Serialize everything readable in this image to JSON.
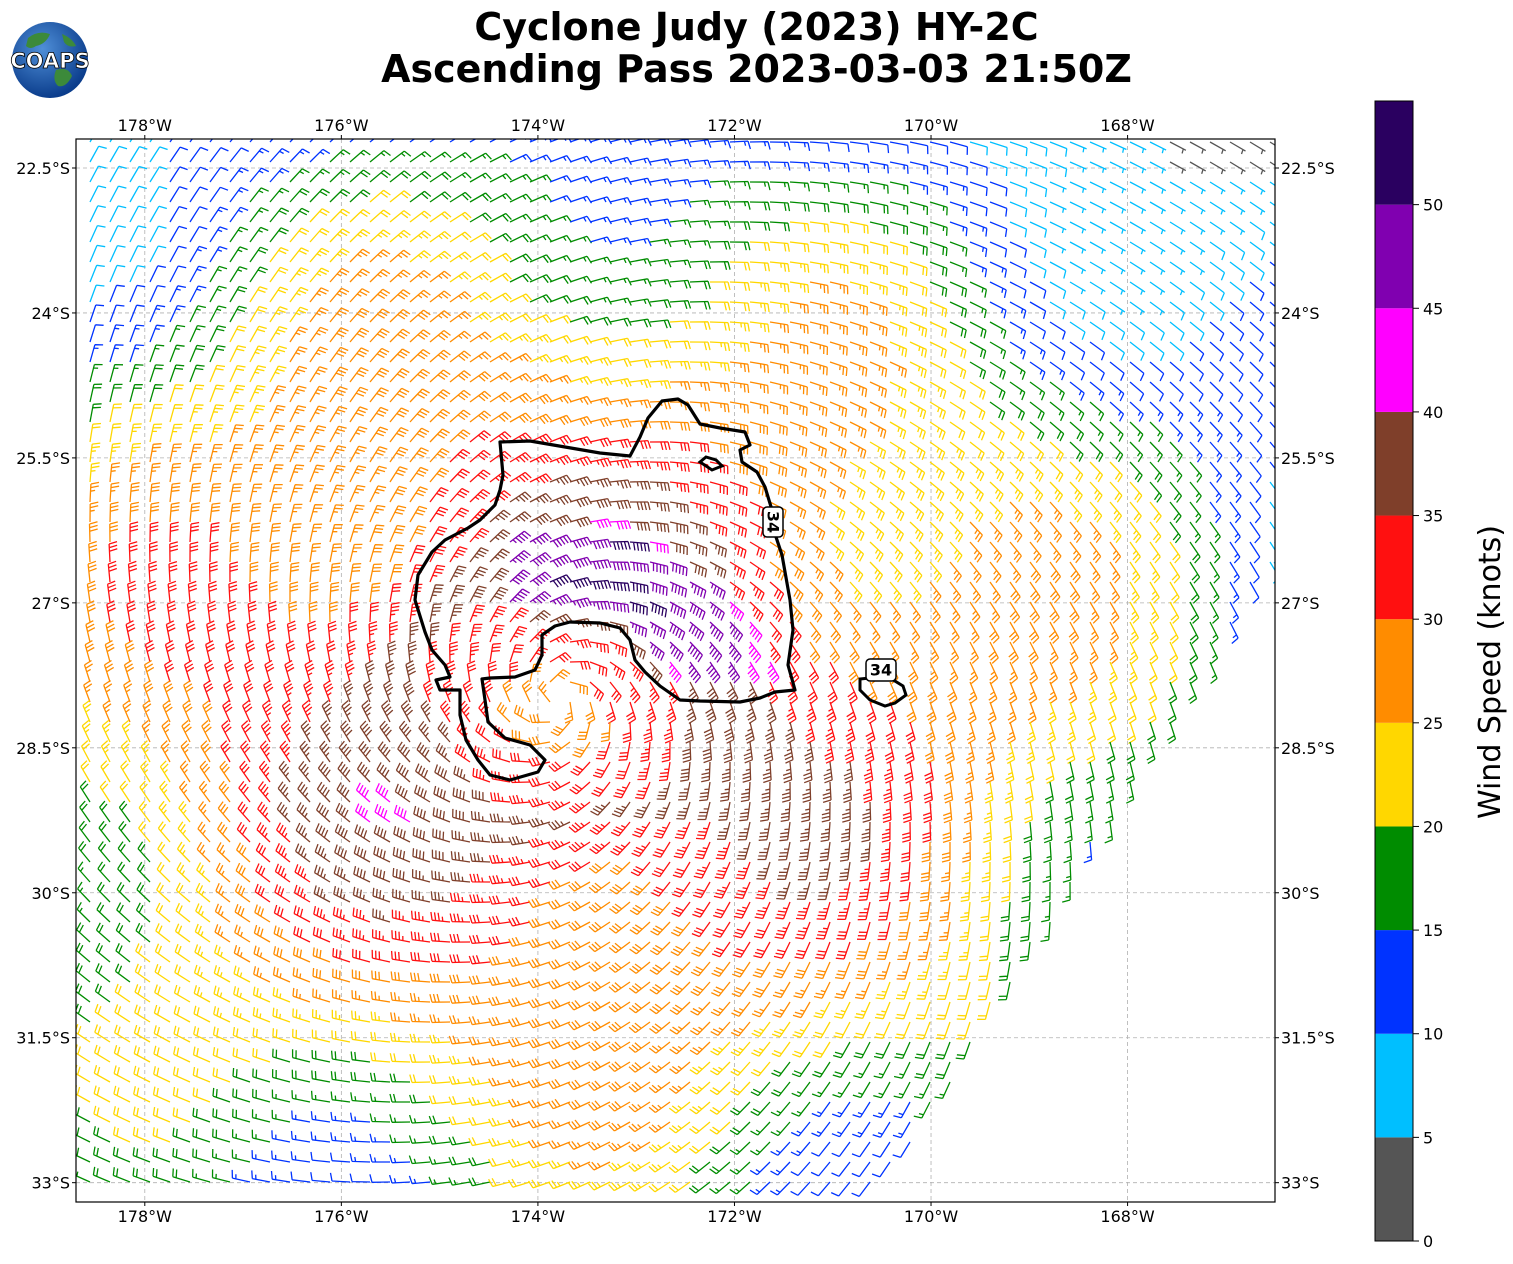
{
  "title": {
    "line1": "Cyclone Judy (2023) HY-2C",
    "line2": "Ascending Pass 2023-03-03 21:50Z"
  },
  "logo": {
    "text": "COAPS",
    "icon": "globe-logo-icon"
  },
  "map": {
    "lon_range": [
      -178.7,
      -166.5
    ],
    "lat_range": [
      -33.2,
      -22.2
    ],
    "lon_ticks": [
      "178°W",
      "176°W",
      "174°W",
      "172°W",
      "170°W",
      "168°W"
    ],
    "lon_tick_values": [
      -178,
      -176,
      -174,
      -172,
      -170,
      -168
    ],
    "lat_ticks": [
      "22.5°S",
      "24°S",
      "25.5°S",
      "27°S",
      "28.5°S",
      "30°S",
      "31.5°S",
      "33°S"
    ],
    "lat_tick_values": [
      -22.5,
      -24,
      -25.5,
      -27,
      -28.5,
      -30,
      -31.5,
      -33
    ],
    "gridlines": true,
    "cyclone_center": {
      "lon": -173.8,
      "lat": -28.0
    },
    "contour_level_label": "34",
    "contour_labels": [
      {
        "text": "34",
        "lon": -171.6,
        "lat": -26.2,
        "rotate": 90
      },
      {
        "text": "34",
        "lon": -170.5,
        "lat": -27.7,
        "rotate": 0
      }
    ]
  },
  "colorbar": {
    "label": "Wind Speed (knots)",
    "ticks": [
      "0",
      "5",
      "10",
      "15",
      "20",
      "25",
      "30",
      "35",
      "40",
      "45",
      "50"
    ],
    "bounds": [
      0,
      5,
      10,
      15,
      20,
      25,
      30,
      35,
      40,
      45,
      50,
      55
    ],
    "colors": [
      "#555555",
      "#00bfff",
      "#0033ff",
      "#008c00",
      "#ffd700",
      "#ff8c00",
      "#ff1010",
      "#7f3f2a",
      "#ff00ff",
      "#8000b0",
      "#2a0060"
    ]
  }
}
